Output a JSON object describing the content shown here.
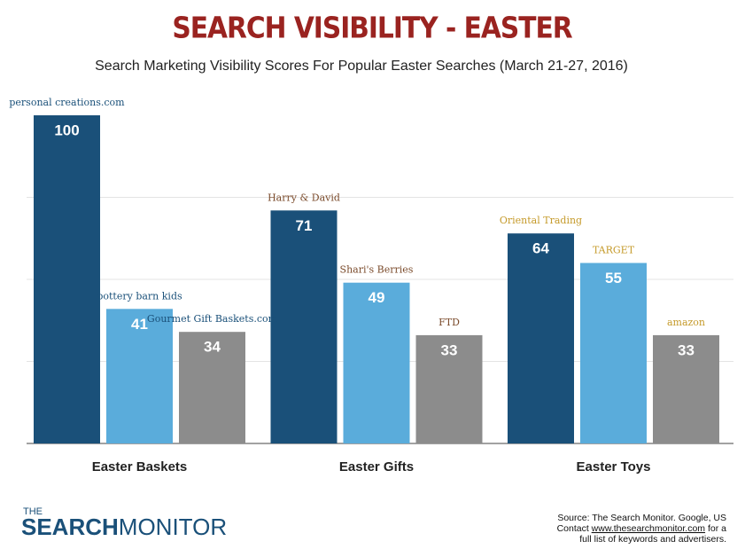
{
  "chart_data": {
    "type": "bar",
    "title": "SEARCH VISIBILITY - EASTER",
    "subtitle": "Search Marketing Visibility Scores For Popular Easter Searches (March 21-27, 2016)",
    "categories": [
      "Easter Baskets",
      "Easter Gifts",
      "Easter Toys"
    ],
    "series": [
      {
        "color": "#1a5079",
        "values": [
          100,
          71,
          64
        ],
        "brands": [
          "personal creations.com",
          "Harry & David",
          "Oriental Trading"
        ]
      },
      {
        "color": "#5aacdb",
        "values": [
          41,
          49,
          55
        ],
        "brands": [
          "pottery barn kids",
          "Shari's Berries",
          "TARGET"
        ]
      },
      {
        "color": "#8c8c8c",
        "values": [
          34,
          33,
          33
        ],
        "brands": [
          "Gourmet Gift Baskets.com",
          "FTD",
          "amazon"
        ]
      }
    ],
    "ylim": [
      0,
      100
    ],
    "yticks": [
      25,
      50,
      75
    ],
    "grid": true,
    "footer": {
      "logo_small": "THE",
      "logo_bold": "SEARCH",
      "logo_light": "MONITOR",
      "source": "Source: The Search Monitor. Google, US",
      "contact": "Contact",
      "url": "www.thesearchmonitor.com",
      "contact_end": "for a",
      "source_end": "full list of keywords and advertisers."
    }
  }
}
